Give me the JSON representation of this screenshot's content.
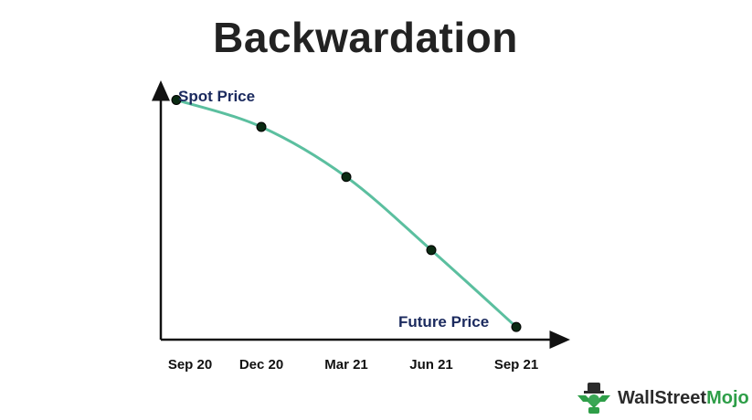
{
  "chart_data": {
    "type": "line",
    "title": "Backwardation",
    "categories": [
      "Sep 20",
      "Dec 20",
      "Mar 21",
      "Jun 21",
      "Sep 21"
    ],
    "values": [
      93,
      86,
      73,
      54,
      34
    ],
    "ylim": [
      30,
      100
    ],
    "annotations": {
      "start": "Spot Price",
      "end": "Future Price"
    },
    "grid": false,
    "line_color": "#5bbf9f",
    "marker_color": "#0a2a12",
    "axis_color": "#111111",
    "annotation_color": "#1b2a5e"
  },
  "brand": {
    "name_part1": "WallStreet",
    "name_part2": "Mojo",
    "icon": "mascot-logo",
    "color_dark": "#2b2b2b",
    "color_green": "#2e9e48"
  }
}
